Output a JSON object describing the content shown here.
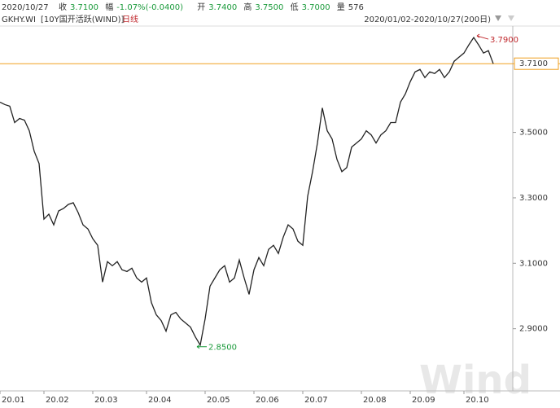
{
  "header": {
    "date": "2020/10/27",
    "items": [
      {
        "label": "收",
        "value": "3.7100"
      },
      {
        "label": "幅",
        "value": "-1.07%(-0.0400)"
      },
      {
        "label": "开",
        "value": "3.7400"
      },
      {
        "label": "高",
        "value": "3.7500"
      },
      {
        "label": "低",
        "value": "3.7000"
      },
      {
        "label": "量",
        "value": "576"
      }
    ],
    "code": "GKHY.WI",
    "name": "[10Y国开活跃(WIND)]",
    "period": "日线",
    "range": "2020/01/02-2020/10/27(200日)"
  },
  "watermark": "Wind",
  "chart_data": {
    "type": "line",
    "categories": [
      "20.01",
      null,
      null,
      null,
      null,
      null,
      null,
      null,
      null,
      "20.02",
      null,
      null,
      null,
      null,
      null,
      null,
      null,
      null,
      null,
      "20.03",
      null,
      null,
      null,
      null,
      null,
      null,
      null,
      null,
      null,
      null,
      "20.04",
      null,
      null,
      null,
      null,
      null,
      null,
      null,
      null,
      null,
      null,
      null,
      "20.05",
      null,
      null,
      null,
      null,
      null,
      null,
      null,
      null,
      null,
      "20.06",
      null,
      null,
      null,
      null,
      null,
      null,
      null,
      null,
      null,
      "20.07",
      null,
      null,
      null,
      null,
      null,
      null,
      null,
      null,
      null,
      null,
      null,
      "20.08",
      null,
      null,
      null,
      null,
      null,
      null,
      null,
      null,
      null,
      "20.09",
      null,
      null,
      null,
      null,
      null,
      null,
      null,
      null,
      null,
      null,
      "20.10",
      null,
      null,
      null,
      null,
      null,
      null
    ],
    "series": [
      {
        "name": "GKHY.WI",
        "color": "#222222",
        "values": [
          3.5925,
          3.585,
          3.58,
          3.53,
          3.5425,
          3.5375,
          3.505,
          3.4425,
          3.405,
          3.235,
          3.25,
          3.2175,
          3.26,
          3.2675,
          3.28,
          3.285,
          3.255,
          3.2175,
          3.205,
          3.175,
          3.155,
          3.0425,
          3.105,
          3.0925,
          3.105,
          3.08,
          3.075,
          3.085,
          3.055,
          3.0425,
          3.055,
          2.98,
          2.9425,
          2.925,
          2.8925,
          2.9425,
          2.95,
          2.93,
          2.9175,
          2.905,
          2.875,
          2.85,
          2.93,
          3.03,
          3.055,
          3.08,
          3.0925,
          3.0425,
          3.055,
          3.11,
          3.055,
          3.005,
          3.08,
          3.1175,
          3.0925,
          3.1425,
          3.155,
          3.13,
          3.18,
          3.2175,
          3.205,
          3.1675,
          3.155,
          3.305,
          3.38,
          3.4675,
          3.575,
          3.505,
          3.48,
          3.4175,
          3.38,
          3.3925,
          3.455,
          3.4675,
          3.48,
          3.505,
          3.4925,
          3.4675,
          3.4925,
          3.505,
          3.53,
          3.53,
          3.5925,
          3.6175,
          3.655,
          3.685,
          3.6925,
          3.6675,
          3.685,
          3.68,
          3.6925,
          3.6675,
          3.685,
          3.7175,
          3.73,
          3.7425,
          3.7675,
          3.79,
          3.7675,
          3.7425,
          3.75,
          3.71
        ]
      }
    ],
    "ylim": [
      2.71,
      3.825
    ],
    "yticks": [
      {
        "value": 2.9,
        "label": "2.9000"
      },
      {
        "value": 3.1,
        "label": "3.1000"
      },
      {
        "value": 3.3,
        "label": "3.3000"
      },
      {
        "value": 3.5,
        "label": "3.5000"
      }
    ],
    "last_label": "3.7100",
    "price_line_color": "#f0a020",
    "max_label": "3.7900",
    "max_color": "#c0282d",
    "min_label": "2.8500",
    "min_color": "#1a9a3a"
  }
}
